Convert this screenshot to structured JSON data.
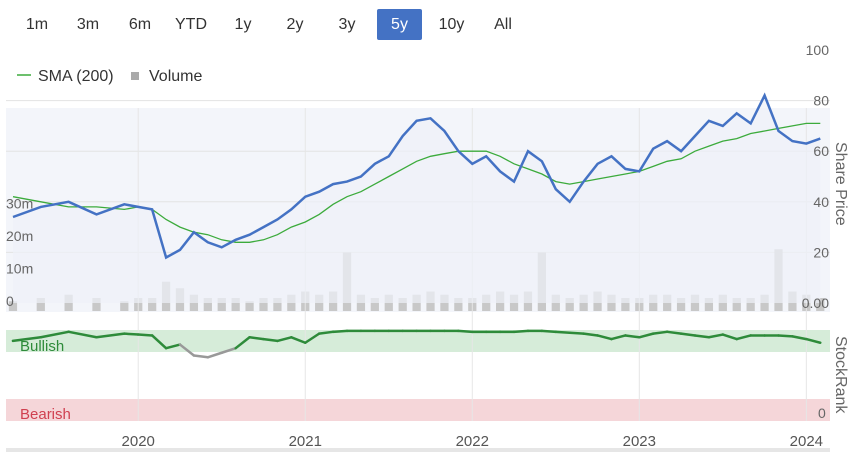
{
  "range_selector": {
    "buttons": [
      "1m",
      "3m",
      "6m",
      "YTD",
      "1y",
      "2y",
      "3y",
      "5y",
      "10y",
      "All"
    ],
    "active": "5y"
  },
  "legend": {
    "sma_label": "SMA (200)",
    "volume_label": "Volume"
  },
  "colors": {
    "price": "#4472c4",
    "sma": "#3cab3c",
    "volume": "#c8c8c8",
    "bullish_band": "#d6ecd9",
    "bearish_band": "#f5d6d9",
    "stockrank": "#2e8b3a",
    "stockrank_weak": "#999999",
    "active_button": "#4472c4"
  },
  "chart_data": [
    {
      "type": "line",
      "title": "",
      "ylabel": "Share Price",
      "ylim": [
        0,
        100
      ],
      "yticks": [
        "0.00",
        "20",
        "40",
        "60",
        "80",
        "100"
      ],
      "volume_axis": {
        "ticks": [
          "0",
          "10m",
          "20m",
          "30m"
        ],
        "max": 40000000
      },
      "xticks": [
        "2020",
        "2021",
        "2022",
        "2023",
        "2024"
      ],
      "x": [
        "2019-04",
        "2019-06",
        "2019-08",
        "2019-10",
        "2019-12",
        "2020-01",
        "2020-02",
        "2020-03",
        "2020-04",
        "2020-05",
        "2020-06",
        "2020-07",
        "2020-08",
        "2020-09",
        "2020-10",
        "2020-11",
        "2020-12",
        "2021-01",
        "2021-02",
        "2021-03",
        "2021-04",
        "2021-05",
        "2021-06",
        "2021-07",
        "2021-08",
        "2021-09",
        "2021-10",
        "2021-11",
        "2021-12",
        "2022-01",
        "2022-02",
        "2022-03",
        "2022-04",
        "2022-05",
        "2022-06",
        "2022-07",
        "2022-08",
        "2022-09",
        "2022-10",
        "2022-11",
        "2022-12",
        "2023-01",
        "2023-02",
        "2023-03",
        "2023-04",
        "2023-05",
        "2023-06",
        "2023-07",
        "2023-08",
        "2023-09",
        "2023-10",
        "2023-11",
        "2023-12",
        "2024-01",
        "2024-02"
      ],
      "series": [
        {
          "name": "Share Price",
          "values": [
            34,
            38,
            40,
            35,
            39,
            38,
            37,
            18,
            21,
            28,
            24,
            22,
            25,
            27,
            30,
            33,
            37,
            42,
            44,
            47,
            48,
            50,
            55,
            58,
            66,
            72,
            73,
            68,
            60,
            55,
            58,
            52,
            48,
            60,
            56,
            45,
            40,
            48,
            55,
            58,
            53,
            52,
            61,
            64,
            60,
            66,
            72,
            70,
            75,
            71,
            82,
            68,
            64,
            63,
            65
          ]
        },
        {
          "name": "SMA (200)",
          "values": [
            42,
            40,
            38,
            38,
            37,
            38,
            37,
            33,
            30,
            28,
            27,
            25,
            24,
            24,
            25,
            27,
            30,
            32,
            35,
            39,
            42,
            44,
            47,
            50,
            53,
            56,
            58,
            59,
            60,
            60,
            60,
            58,
            55,
            53,
            51,
            48,
            47,
            48,
            49,
            50,
            51,
            52,
            54,
            56,
            57,
            60,
            62,
            64,
            65,
            67,
            68,
            69,
            70,
            71,
            71
          ]
        },
        {
          "name": "Volume",
          "values": [
            3,
            4,
            5,
            4,
            3,
            4,
            4,
            9,
            7,
            5,
            4,
            4,
            4,
            3,
            4,
            4,
            5,
            6,
            5,
            6,
            18,
            5,
            4,
            5,
            4,
            5,
            6,
            5,
            4,
            4,
            5,
            6,
            5,
            6,
            18,
            5,
            4,
            5,
            6,
            5,
            4,
            4,
            5,
            5,
            4,
            5,
            4,
            5,
            4,
            4,
            5,
            19,
            6,
            5,
            4
          ]
        }
      ]
    },
    {
      "type": "line",
      "title": "",
      "ylabel": "StockRank",
      "ylim": [
        0,
        100
      ],
      "yticks": [
        "0"
      ],
      "band_labels": [
        "Bullish",
        "Bearish"
      ],
      "x": [
        "2019-04",
        "2019-06",
        "2019-08",
        "2019-10",
        "2019-12",
        "2020-01",
        "2020-02",
        "2020-03",
        "2020-04",
        "2020-05",
        "2020-06",
        "2020-07",
        "2020-08",
        "2020-09",
        "2020-10",
        "2020-11",
        "2020-12",
        "2021-01",
        "2021-02",
        "2021-03",
        "2021-04",
        "2021-05",
        "2021-06",
        "2021-07",
        "2021-08",
        "2021-09",
        "2021-10",
        "2021-11",
        "2021-12",
        "2022-01",
        "2022-02",
        "2022-03",
        "2022-04",
        "2022-05",
        "2022-06",
        "2022-07",
        "2022-08",
        "2022-09",
        "2022-10",
        "2022-11",
        "2022-12",
        "2023-01",
        "2023-02",
        "2023-03",
        "2023-04",
        "2023-05",
        "2023-06",
        "2023-07",
        "2023-08",
        "2023-09",
        "2023-10",
        "2023-11",
        "2023-12",
        "2024-01",
        "2024-02"
      ],
      "series": [
        {
          "name": "StockRank",
          "values": [
            88,
            92,
            98,
            92,
            96,
            95,
            94,
            80,
            84,
            72,
            70,
            75,
            80,
            92,
            90,
            88,
            92,
            86,
            96,
            98,
            99,
            99,
            99,
            99,
            99,
            99,
            99,
            99,
            99,
            98,
            98,
            98,
            98,
            99,
            99,
            98,
            97,
            96,
            94,
            90,
            94,
            92,
            96,
            98,
            96,
            94,
            92,
            95,
            90,
            94,
            94,
            94,
            93,
            90,
            86
          ]
        }
      ]
    }
  ]
}
